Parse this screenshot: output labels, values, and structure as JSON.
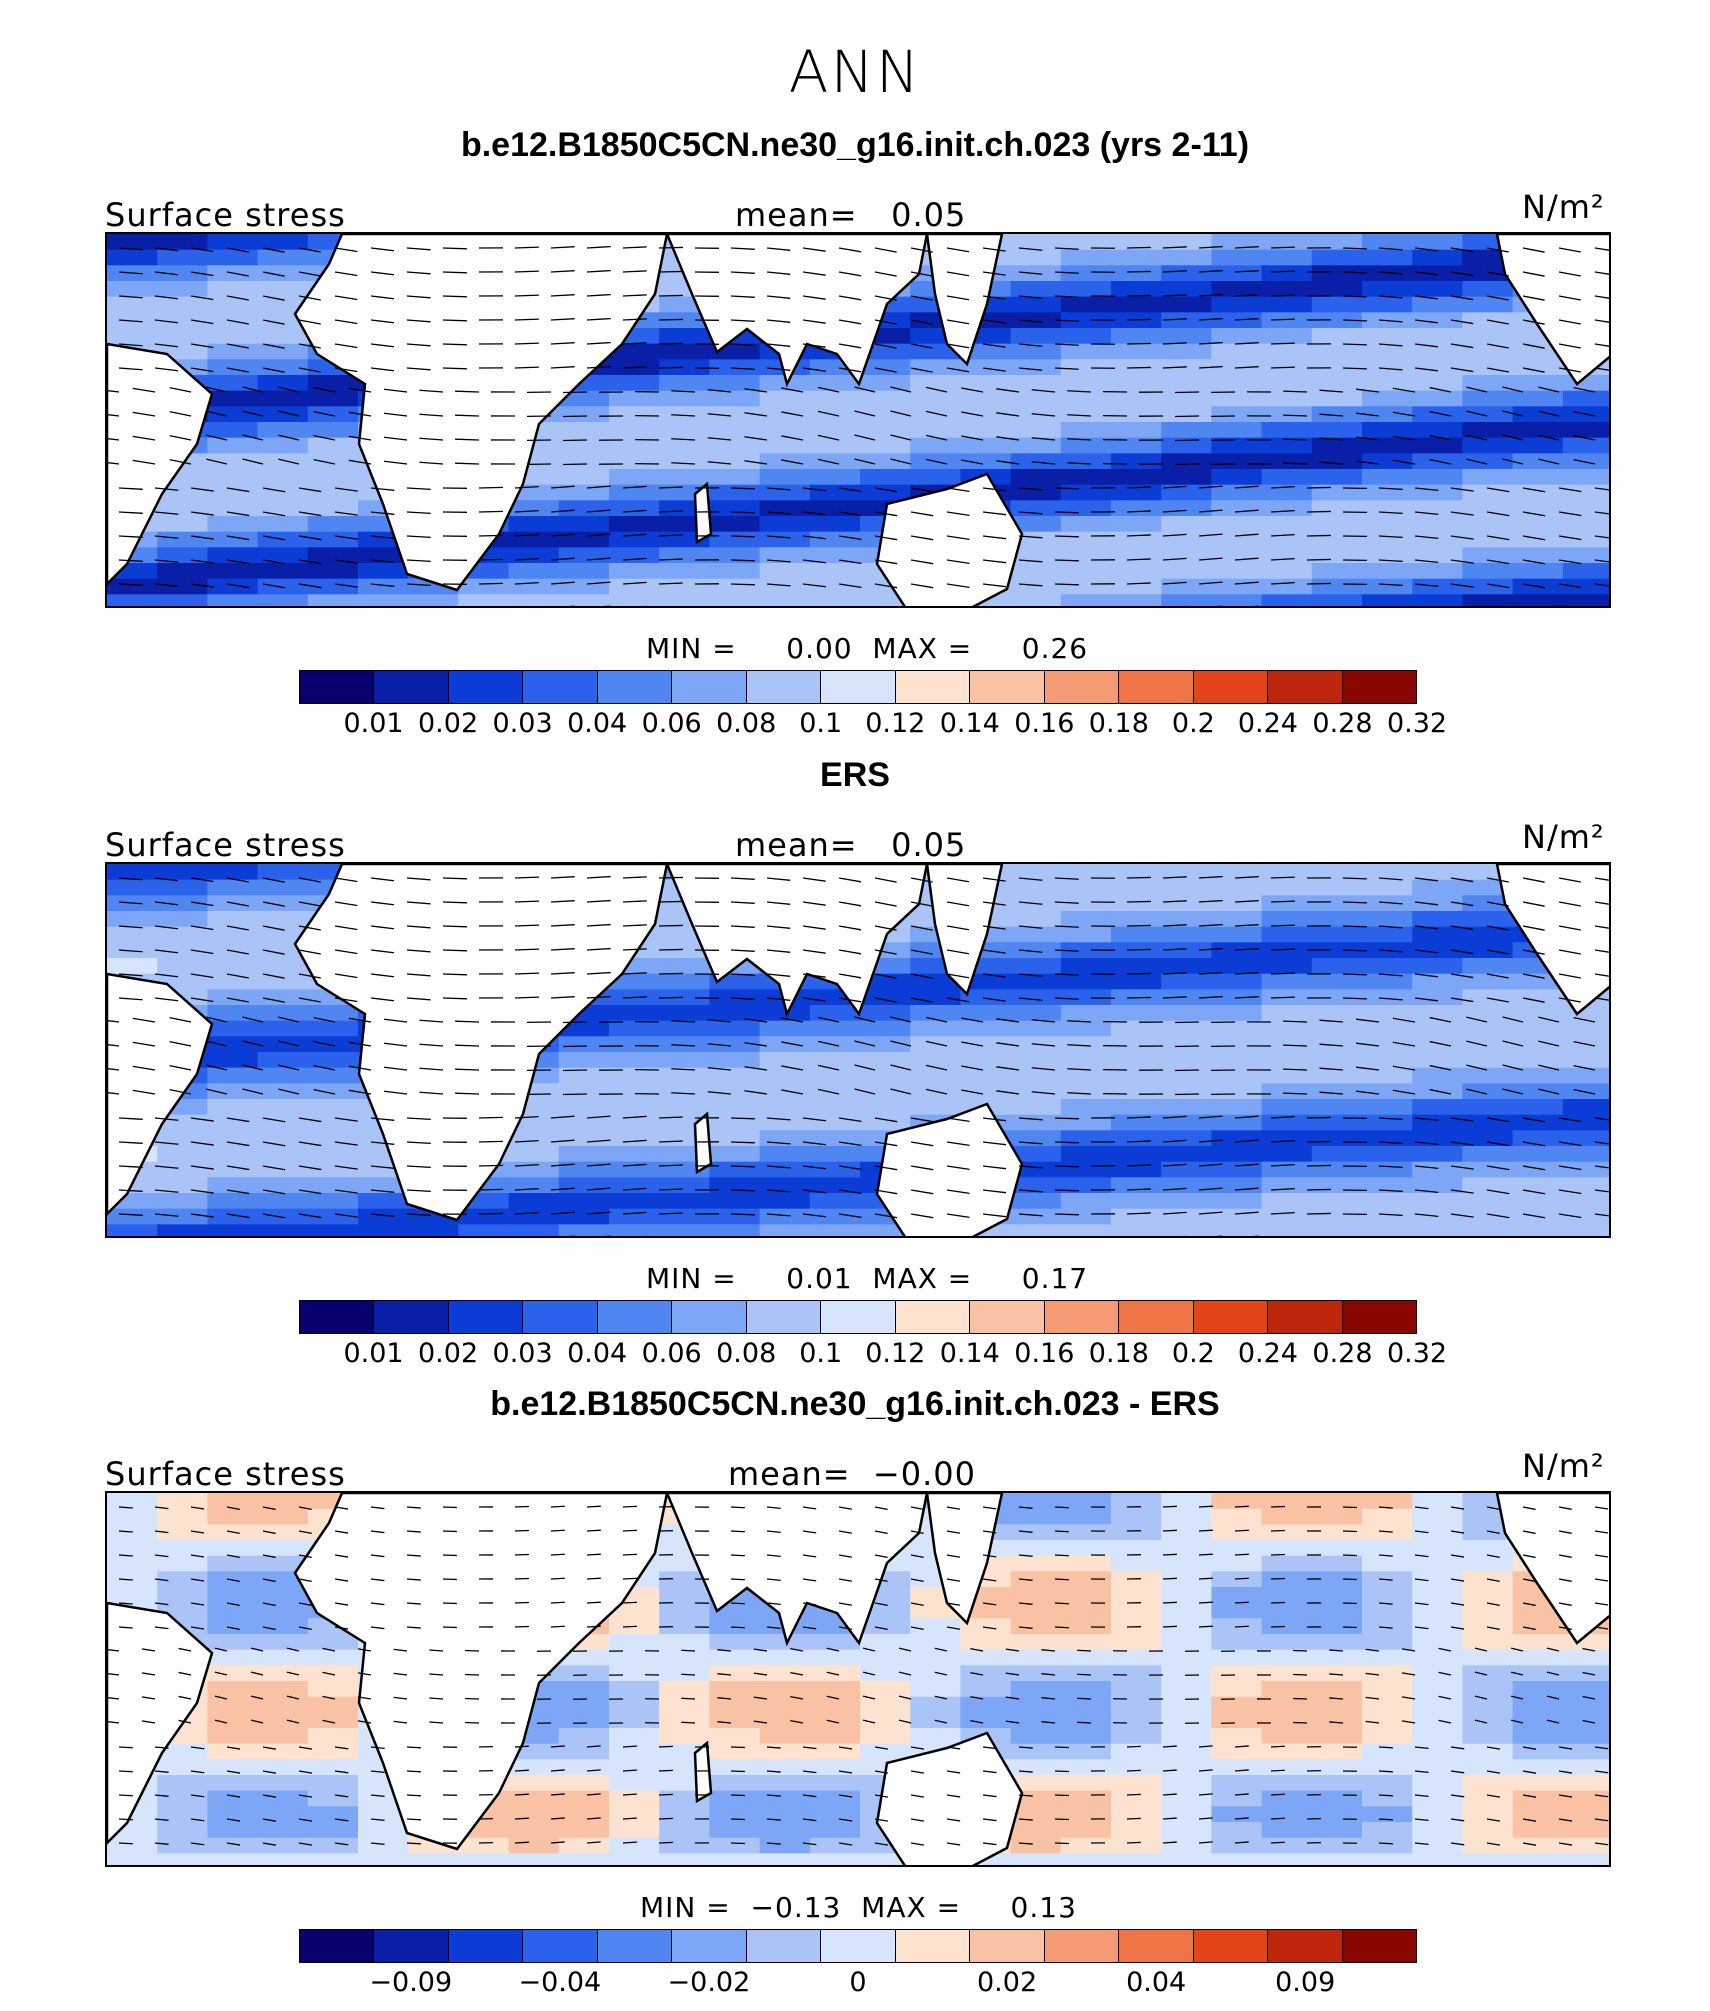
{
  "figure_title": "ANN",
  "units": "N/m²",
  "variable": "Surface stress",
  "mean_label": "mean=",
  "min_label": "MIN =",
  "max_label": "MAX =",
  "land_color": "#ffffff",
  "seq_colors": [
    "#08006e",
    "#0a1fa8",
    "#0c3cd6",
    "#2b62ec",
    "#4f86f2",
    "#7ea6f6",
    "#aac4f8",
    "#d6e5fb",
    "#fde3cf",
    "#f9c2a4",
    "#f49b74",
    "#ee7445",
    "#e44419",
    "#bd260b",
    "#880700"
  ],
  "panels": [
    {
      "title": "b.e12.B1850C5CN.ne30_g16.init.ch.023 (yrs 2-11)",
      "mean": "0.05",
      "min": "0.00",
      "max": "0.26",
      "tick_labels": [
        "0.01",
        "0.02",
        "0.03",
        "0.04",
        "0.06",
        "0.08",
        "0.1",
        "0.12",
        "0.14",
        "0.16",
        "0.18",
        "0.2",
        "0.24",
        "0.28",
        "0.32"
      ]
    },
    {
      "title": "ERS",
      "mean": "0.05",
      "min": "0.01",
      "max": "0.17",
      "tick_labels": [
        "0.01",
        "0.02",
        "0.03",
        "0.04",
        "0.06",
        "0.08",
        "0.1",
        "0.12",
        "0.14",
        "0.16",
        "0.18",
        "0.2",
        "0.24",
        "0.28",
        "0.32"
      ]
    },
    {
      "title": "b.e12.B1850C5CN.ne30_g16.init.ch.023 - ERS",
      "mean": "−0.00",
      "min": "−0.13",
      "max": "0.13",
      "tick_labels": [
        "−0.09",
        "−0.04",
        "−0.02",
        "0",
        "0.02",
        "0.04",
        "0.09"
      ]
    }
  ]
}
